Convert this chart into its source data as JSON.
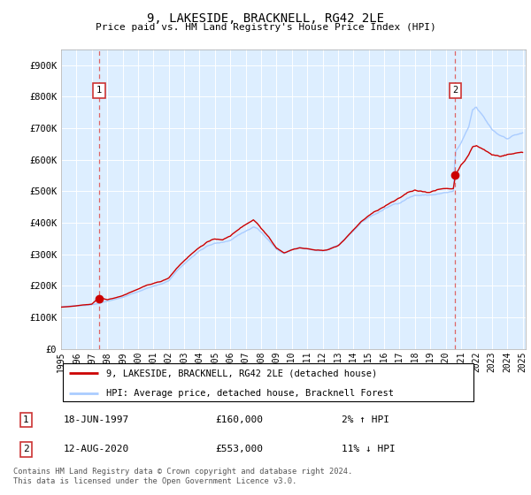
{
  "title": "9, LAKESIDE, BRACKNELL, RG42 2LE",
  "subtitle": "Price paid vs. HM Land Registry's House Price Index (HPI)",
  "ylabel_ticks": [
    "£0",
    "£100K",
    "£200K",
    "£300K",
    "£400K",
    "£500K",
    "£600K",
    "£700K",
    "£800K",
    "£900K"
  ],
  "ytick_values": [
    0,
    100000,
    200000,
    300000,
    400000,
    500000,
    600000,
    700000,
    800000,
    900000
  ],
  "ylim": [
    0,
    950000
  ],
  "xlim_start": 1995.0,
  "xlim_end": 2025.2,
  "xtick_years": [
    1995,
    1996,
    1997,
    1998,
    1999,
    2000,
    2001,
    2002,
    2003,
    2004,
    2005,
    2006,
    2007,
    2008,
    2009,
    2010,
    2011,
    2012,
    2013,
    2014,
    2015,
    2016,
    2017,
    2018,
    2019,
    2020,
    2021,
    2022,
    2023,
    2024,
    2025
  ],
  "hpi_color": "#aaccff",
  "price_color": "#cc0000",
  "dot_color": "#cc0000",
  "vline_color": "#dd6666",
  "plot_bg_color": "#ddeeff",
  "grid_color": "#ffffff",
  "legend_label_red": "9, LAKESIDE, BRACKNELL, RG42 2LE (detached house)",
  "legend_label_blue": "HPI: Average price, detached house, Bracknell Forest",
  "annotation1_label": "1",
  "annotation1_date": "18-JUN-1997",
  "annotation1_price": "£160,000",
  "annotation1_hpi": "2% ↑ HPI",
  "annotation1_year": 1997.46,
  "annotation1_value": 160000,
  "annotation2_label": "2",
  "annotation2_date": "12-AUG-2020",
  "annotation2_price": "£553,000",
  "annotation2_hpi": "11% ↓ HPI",
  "annotation2_year": 2020.62,
  "annotation2_value": 553000,
  "footer": "Contains HM Land Registry data © Crown copyright and database right 2024.\nThis data is licensed under the Open Government Licence v3.0."
}
